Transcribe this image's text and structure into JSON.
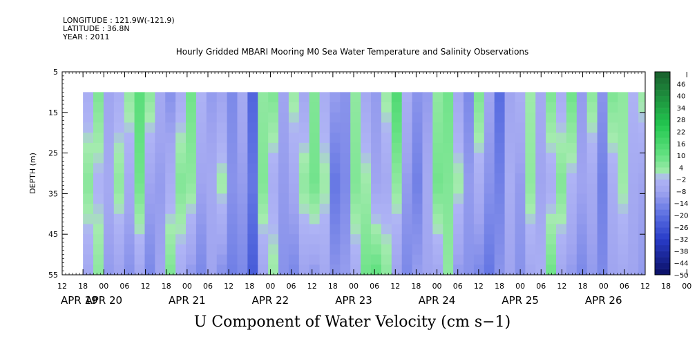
{
  "header": {
    "longitude": "LONGITUDE : 121.9W(-121.9)",
    "latitude": "LATITUDE : 36.8N",
    "year": "YEAR : 2011",
    "title": "Hourly Gridded MBARI Mooring M0 Sea Water Temperature and Salinity Observations"
  },
  "chart_data": {
    "type": "heatmap",
    "title": "Hourly Gridded MBARI Mooring M0 Sea Water Temperature and Salinity Observations",
    "xlabel": "U Component of Water Velocity (cm s−1)",
    "ylabel": "DEPTH (m)",
    "ylim": [
      55,
      5
    ],
    "y_ticks": [
      "5",
      "15",
      "25",
      "35",
      "45",
      "55"
    ],
    "x_ticks_hours": [
      "12",
      "18",
      "00",
      "06",
      "12",
      "18",
      "00",
      "06",
      "12",
      "18",
      "00",
      "06",
      "12",
      "18",
      "00",
      "06",
      "12",
      "18",
      "00",
      "06",
      "12",
      "18",
      "00",
      "06",
      "12",
      "18",
      "00",
      "06",
      "12",
      "18",
      "00",
      "06",
      "12",
      "18",
      "00",
      "06",
      "12"
    ],
    "x_day_labels": [
      "APR 19",
      "APR 20",
      "APR 21",
      "APR 22",
      "APR 23",
      "APR 24",
      "APR 25",
      "APR 26"
    ],
    "data_extent": {
      "time_start": "APR 19 18:00",
      "time_end": "APR 26 13:00",
      "depth_top": 10,
      "depth_bottom": 55
    },
    "colorbar_labels": [
      "46",
      "40",
      "34",
      "28",
      "22",
      "16",
      "10",
      "4",
      "−2",
      "−8",
      "−14",
      "−20",
      "−26",
      "−32",
      "−38",
      "−44",
      "−50"
    ],
    "colorbar_range": [
      -50,
      52
    ],
    "colorbar_step": 3,
    "colors": {
      "dark_green": "#1f6b2e",
      "green": "#2fd05a",
      "light_green": "#9af0a8",
      "light_blue": "#a5abf0",
      "mid_blue": "#8a93e8",
      "blue": "#4860d8",
      "navy": "#0b0f6a"
    },
    "time_columns_u_cm_s": [
      {
        "t": "APR 19 18",
        "top": -4,
        "mid": 5,
        "bot": -6
      },
      {
        "t": "APR 19 21",
        "top": 6,
        "mid": -2,
        "bot": 4
      },
      {
        "t": "APR 20 00",
        "top": -8,
        "mid": -6,
        "bot": -10
      },
      {
        "t": "APR 20 03",
        "top": -4,
        "mid": 4,
        "bot": -8
      },
      {
        "t": "APR 20 06",
        "top": 3,
        "mid": -6,
        "bot": -12
      },
      {
        "t": "APR 20 09",
        "top": 12,
        "mid": 8,
        "bot": -6
      },
      {
        "t": "APR 20 12",
        "top": 4,
        "mid": -8,
        "bot": -14
      },
      {
        "t": "APR 20 15",
        "top": -6,
        "mid": -10,
        "bot": -8
      },
      {
        "t": "APR 20 18",
        "top": -12,
        "mid": -4,
        "bot": 6
      },
      {
        "t": "APR 20 21",
        "top": -4,
        "mid": 6,
        "bot": -4
      },
      {
        "t": "APR 21 00",
        "top": 8,
        "mid": 4,
        "bot": -10
      },
      {
        "t": "APR 21 03",
        "top": -2,
        "mid": -8,
        "bot": -14
      },
      {
        "t": "APR 21 06",
        "top": -10,
        "mid": -6,
        "bot": -8
      },
      {
        "t": "APR 21 09",
        "top": -8,
        "mid": 2,
        "bot": -12
      },
      {
        "t": "APR 21 12",
        "top": -14,
        "mid": -12,
        "bot": -16
      },
      {
        "t": "APR 21 15",
        "top": -6,
        "mid": -10,
        "bot": -14
      },
      {
        "t": "APR 21 18",
        "top": -22,
        "mid": -18,
        "bot": -24
      },
      {
        "t": "APR 21 21",
        "top": 4,
        "mid": 6,
        "bot": -6
      },
      {
        "t": "APR 22 00",
        "top": 6,
        "mid": -4,
        "bot": 2
      },
      {
        "t": "APR 22 03",
        "top": -8,
        "mid": -10,
        "bot": -12
      },
      {
        "t": "APR 22 06",
        "top": 2,
        "mid": -6,
        "bot": -14
      },
      {
        "t": "APR 22 09",
        "top": -6,
        "mid": 4,
        "bot": -8
      },
      {
        "t": "APR 22 12",
        "top": 6,
        "mid": 8,
        "bot": -10
      },
      {
        "t": "APR 22 15",
        "top": -4,
        "mid": 2,
        "bot": -6
      },
      {
        "t": "APR 22 18",
        "top": -10,
        "mid": -18,
        "bot": -12
      },
      {
        "t": "APR 22 21",
        "top": -12,
        "mid": -14,
        "bot": -10
      },
      {
        "t": "APR 23 00",
        "top": 4,
        "mid": 6,
        "bot": -4
      },
      {
        "t": "APR 23 03",
        "top": -6,
        "mid": 2,
        "bot": 8
      },
      {
        "t": "APR 23 06",
        "top": -10,
        "mid": -8,
        "bot": 10
      },
      {
        "t": "APR 23 09",
        "top": 2,
        "mid": -6,
        "bot": 4
      },
      {
        "t": "APR 23 12",
        "top": 14,
        "mid": 4,
        "bot": -8
      },
      {
        "t": "APR 23 15",
        "top": -4,
        "mid": -10,
        "bot": -14
      },
      {
        "t": "APR 23 18",
        "top": -12,
        "mid": -16,
        "bot": -10
      },
      {
        "t": "APR 23 21",
        "top": -10,
        "mid": -6,
        "bot": -8
      },
      {
        "t": "APR 24 00",
        "top": 4,
        "mid": 8,
        "bot": -6
      },
      {
        "t": "APR 24 03",
        "top": 8,
        "mid": 6,
        "bot": 4
      },
      {
        "t": "APR 24 06",
        "top": -6,
        "mid": 2,
        "bot": -10
      },
      {
        "t": "APR 24 09",
        "top": -14,
        "mid": -10,
        "bot": -12
      },
      {
        "t": "APR 24 12",
        "top": 6,
        "mid": -4,
        "bot": -14
      },
      {
        "t": "APR 24 15",
        "top": -8,
        "mid": -12,
        "bot": -18
      },
      {
        "t": "APR 24 18",
        "top": -20,
        "mid": -16,
        "bot": -12
      },
      {
        "t": "APR 24 21",
        "top": -8,
        "mid": -4,
        "bot": -8
      },
      {
        "t": "APR 25 00",
        "top": -4,
        "mid": -10,
        "bot": -12
      },
      {
        "t": "APR 25 03",
        "top": 2,
        "mid": 4,
        "bot": -6
      },
      {
        "t": "APR 25 06",
        "top": -6,
        "mid": -8,
        "bot": -4
      },
      {
        "t": "APR 25 09",
        "top": 6,
        "mid": -4,
        "bot": 8
      },
      {
        "t": "APR 25 12",
        "top": -4,
        "mid": 6,
        "bot": -6
      },
      {
        "t": "APR 25 15",
        "top": 8,
        "mid": -2,
        "bot": -10
      },
      {
        "t": "APR 25 18",
        "top": -10,
        "mid": -8,
        "bot": -14
      },
      {
        "t": "APR 25 21",
        "top": 4,
        "mid": -6,
        "bot": -10
      },
      {
        "t": "APR 26 00",
        "top": -12,
        "mid": -16,
        "bot": -14
      },
      {
        "t": "APR 26 03",
        "top": 6,
        "mid": -4,
        "bot": -8
      },
      {
        "t": "APR 26 06",
        "top": 4,
        "mid": 2,
        "bot": -6
      },
      {
        "t": "APR 26 09",
        "top": -2,
        "mid": -6,
        "bot": -8
      },
      {
        "t": "APR 26 12",
        "top": 2,
        "mid": -8,
        "bot": -10
      }
    ]
  }
}
